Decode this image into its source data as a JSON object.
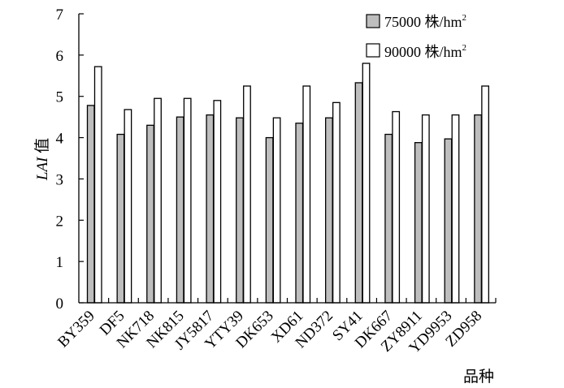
{
  "chart_data": {
    "type": "bar",
    "title": "",
    "ylabel": "LAI 值",
    "ylabel_italic_part": "LAI",
    "ylabel_plain_part": " 值",
    "xlabel": "品种",
    "ylim": [
      0,
      7
    ],
    "yticks": [
      0,
      1,
      2,
      3,
      4,
      5,
      6,
      7
    ],
    "grid": false,
    "legend_position": "top-right",
    "categories": [
      "BY359",
      "DF5",
      "NK718",
      "NK815",
      "JY5817",
      "YTY39",
      "DK653",
      "XD61",
      "ND372",
      "SY41",
      "DK667",
      "ZY8911",
      "YD9953",
      "ZD958"
    ],
    "series": [
      {
        "name": "75000 株/hm²",
        "legend_main": "75000 株/hm",
        "legend_sup": "2",
        "color": "#bebebe",
        "values": [
          4.78,
          4.08,
          4.3,
          4.5,
          4.55,
          4.48,
          4.0,
          4.35,
          4.48,
          5.33,
          4.08,
          3.88,
          3.97,
          4.55
        ]
      },
      {
        "name": "90000 株/hm²",
        "legend_main": "90000 株/hm",
        "legend_sup": "2",
        "color": "#ffffff",
        "values": [
          5.72,
          4.68,
          4.95,
          4.95,
          4.9,
          5.25,
          4.48,
          5.25,
          4.85,
          5.8,
          4.63,
          4.55,
          4.55,
          5.25
        ]
      }
    ]
  }
}
